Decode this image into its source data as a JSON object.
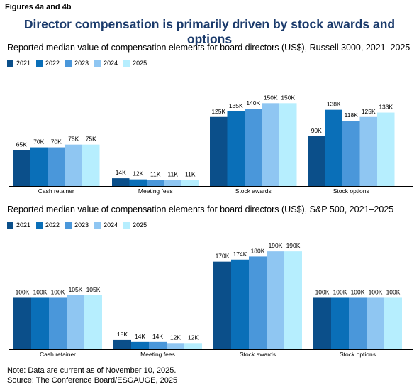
{
  "figure_label": "Figures 4a and 4b",
  "main_title": "Director compensation is primarily driven by stock awards and options",
  "series_colors": [
    "#0b4f8a",
    "#0a6fb8",
    "#4a97da",
    "#8fc6f2",
    "#b6eefe"
  ],
  "chart_data": [
    {
      "type": "bar",
      "title": "Reported median value of compensation elements for board directors (US$), Russell 3000, 2021–2025",
      "categories": [
        "Cash retainer",
        "Meeting fees",
        "Stock awards",
        "Stock options"
      ],
      "series": [
        {
          "name": "2021",
          "values": [
            65,
            14,
            125,
            90
          ],
          "labels": [
            "65K",
            "14K",
            "125K",
            "90K"
          ]
        },
        {
          "name": "2022",
          "values": [
            70,
            12,
            135,
            138
          ],
          "labels": [
            "70K",
            "12K",
            "135K",
            "138K"
          ]
        },
        {
          "name": "2023",
          "values": [
            70,
            11,
            140,
            118
          ],
          "labels": [
            "70K",
            "11K",
            "140K",
            "118K"
          ]
        },
        {
          "name": "2024",
          "values": [
            75,
            11,
            150,
            125
          ],
          "labels": [
            "75K",
            "11K",
            "150K",
            "125K"
          ]
        },
        {
          "name": "2025",
          "values": [
            75,
            11,
            150,
            133
          ],
          "labels": [
            "75K",
            "11K",
            "150K",
            "133K"
          ]
        }
      ],
      "ylim": [
        0,
        162
      ],
      "grid": false,
      "legend": "top-left"
    },
    {
      "type": "bar",
      "title": "Reported median value of compensation elements for board directors (US$), S&P 500, 2021–2025",
      "categories": [
        "Cash retainer",
        "Meeting fees",
        "Stock awards",
        "Stock options"
      ],
      "series": [
        {
          "name": "2021",
          "values": [
            100,
            18,
            170,
            100
          ],
          "labels": [
            "100K",
            "18K",
            "170K",
            "100K"
          ]
        },
        {
          "name": "2022",
          "values": [
            100,
            14,
            174,
            100
          ],
          "labels": [
            "100K",
            "14K",
            "174K",
            "100K"
          ]
        },
        {
          "name": "2023",
          "values": [
            100,
            14,
            180,
            100
          ],
          "labels": [
            "100K",
            "14K",
            "180K",
            "100K"
          ]
        },
        {
          "name": "2024",
          "values": [
            105,
            12,
            190,
            100
          ],
          "labels": [
            "105K",
            "12K",
            "190K",
            "100K"
          ]
        },
        {
          "name": "2025",
          "values": [
            105,
            12,
            190,
            100
          ],
          "labels": [
            "105K",
            "12K",
            "190K",
            "100K"
          ]
        }
      ],
      "ylim": [
        0,
        204
      ],
      "grid": false,
      "legend": "top-left"
    }
  ],
  "note": "Note: Data are current as of November 10, 2025.",
  "source": "Source: The Conference Board/ESGAUGE, 2025"
}
